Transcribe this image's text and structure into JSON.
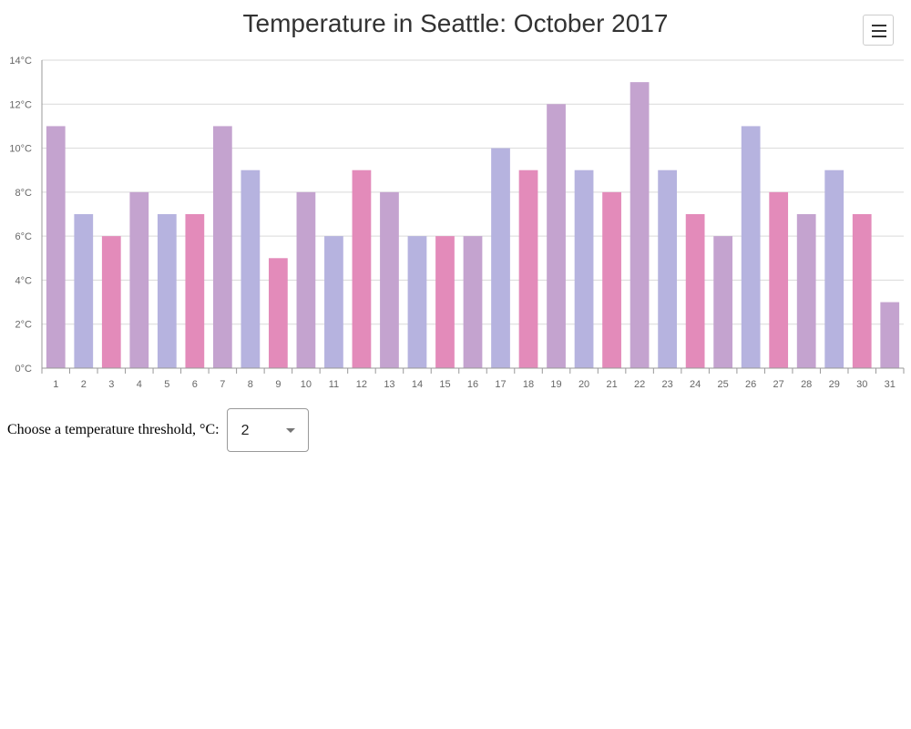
{
  "title": "Temperature in Seattle: October 2017",
  "menu": {
    "icon": "hamburger-menu-icon"
  },
  "threshold": {
    "label": "Choose a temperature threshold, °C:",
    "value": "2",
    "icon": "caret-down-icon"
  },
  "colors": {
    "purple": "#c4a3cf",
    "blue": "#b6b3df",
    "pink": "#e38bba",
    "grid": "#d9d9d9",
    "axis": "#999999"
  },
  "chart_data": {
    "type": "bar",
    "title": "Temperature in Seattle: October 2017",
    "xlabel": "",
    "ylabel": "",
    "ylim": [
      0,
      14
    ],
    "yticks": [
      "0°C",
      "2°C",
      "4°C",
      "6°C",
      "8°C",
      "10°C",
      "12°C",
      "14°C"
    ],
    "ytick_values": [
      0,
      2,
      4,
      6,
      8,
      10,
      12,
      14
    ],
    "grid": true,
    "categories": [
      "1",
      "2",
      "3",
      "4",
      "5",
      "6",
      "7",
      "8",
      "9",
      "10",
      "11",
      "12",
      "13",
      "14",
      "15",
      "16",
      "17",
      "18",
      "19",
      "20",
      "21",
      "22",
      "23",
      "24",
      "25",
      "26",
      "27",
      "28",
      "29",
      "30",
      "31"
    ],
    "values": [
      11,
      7,
      6,
      8,
      7,
      7,
      11,
      9,
      5,
      8,
      6,
      9,
      8,
      6,
      6,
      6,
      10,
      9,
      12,
      9,
      8,
      13,
      9,
      7,
      6,
      11,
      8,
      7,
      9,
      7,
      3
    ],
    "bar_colors_cycle": [
      "#c4a3cf",
      "#b6b3df",
      "#e38bba"
    ]
  }
}
